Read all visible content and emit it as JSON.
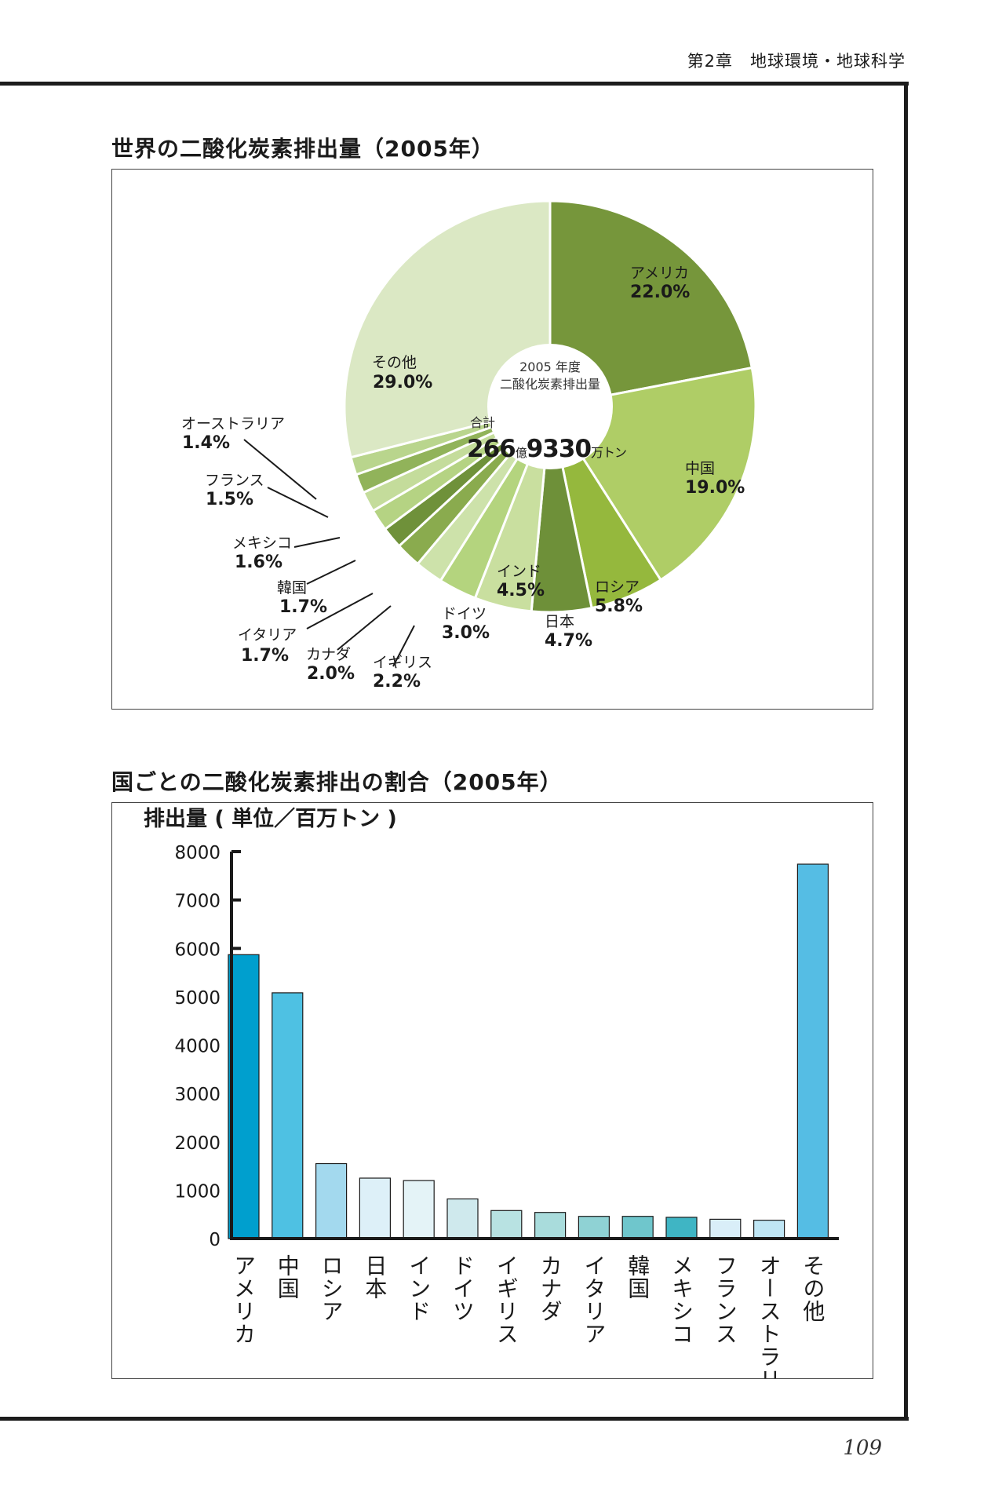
{
  "header": "第2章　地球環境・地球科学",
  "page_number": "109",
  "colors": {
    "frame": "#1c1c1c",
    "pie_dark": "#76963b",
    "pie_light": "#dbe8c4",
    "bar_blue": "#009fce"
  },
  "chart_data": [
    {
      "type": "pie",
      "title": "世界の二酸化炭素排出量（2005年）",
      "center": {
        "line1": "2005 年度",
        "line2": "二酸化炭素排出量",
        "total_label": "合計",
        "total_oku": "266",
        "oku_unit": "億",
        "total_man": "9330",
        "man_unit": "万トン"
      },
      "slices": [
        {
          "name": "アメリカ",
          "value": 22.0,
          "label": "22.0%",
          "color": "#76963b"
        },
        {
          "name": "中国",
          "value": 19.0,
          "label": "19.0%",
          "color": "#afcd66"
        },
        {
          "name": "ロシア",
          "value": 5.8,
          "label": "5.8%",
          "color": "#95b83d"
        },
        {
          "name": "日本",
          "value": 4.7,
          "label": "4.7%",
          "color": "#6e9039"
        },
        {
          "name": "インド",
          "value": 4.5,
          "label": "4.5%",
          "color": "#c9df9f"
        },
        {
          "name": "ドイツ",
          "value": 3.0,
          "label": "3.0%",
          "color": "#b4d47e"
        },
        {
          "name": "イギリス",
          "value": 2.2,
          "label": "2.2%",
          "color": "#cde2aa"
        },
        {
          "name": "カナダ",
          "value": 2.0,
          "label": "2.0%",
          "color": "#8aab4e"
        },
        {
          "name": "イタリア",
          "value": 1.7,
          "label": "1.7%",
          "color": "#6f913a"
        },
        {
          "name": "韓国",
          "value": 1.7,
          "label": "1.7%",
          "color": "#b5d383"
        },
        {
          "name": "メキシコ",
          "value": 1.6,
          "label": "1.6%",
          "color": "#c4dc9b"
        },
        {
          "name": "フランス",
          "value": 1.5,
          "label": "1.5%",
          "color": "#91b35a"
        },
        {
          "name": "オーストラリア",
          "value": 1.4,
          "label": "1.4%",
          "color": "#b9d58d"
        },
        {
          "name": "その他",
          "value": 29.0,
          "label": "29.0%",
          "color": "#dbe8c4"
        }
      ]
    },
    {
      "type": "bar",
      "title": "国ごとの二酸化炭素排出の割合（2005年）",
      "ylabel": "排出量 ( 単位／百万トン )",
      "ylim": [
        0,
        8000
      ],
      "yticks": [
        0,
        1000,
        2000,
        3000,
        4000,
        5000,
        6000,
        7000,
        8000
      ],
      "categories": [
        "アメリカ",
        "中国",
        "ロシア",
        "日本",
        "インド",
        "ドイツ",
        "イギリス",
        "カナダ",
        "イタリア",
        "韓国",
        "メキシコ",
        "フランス",
        "オーストラリア",
        "その他"
      ],
      "values": [
        5870,
        5080,
        1550,
        1250,
        1200,
        820,
        580,
        540,
        460,
        460,
        440,
        400,
        380,
        7740
      ],
      "colors": [
        "#009fce",
        "#4ec1e3",
        "#a3d9ee",
        "#ddf0f8",
        "#e4f3f7",
        "#cfe9ed",
        "#b8e2e2",
        "#a9dcdc",
        "#8fd2d4",
        "#6fc6cc",
        "#3fb5c4",
        "#d9eef8",
        "#bfe6f5",
        "#55bde4"
      ]
    }
  ]
}
